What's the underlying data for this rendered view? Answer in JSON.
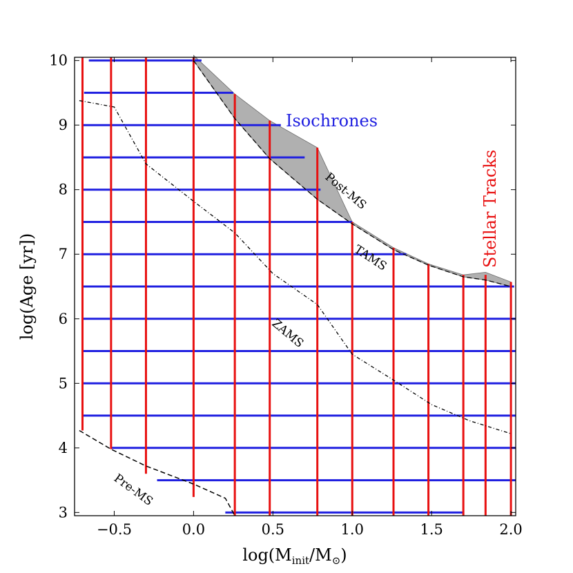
{
  "chart_data": {
    "type": "line",
    "xlabel": "log(M",
    "xlabel_sub": "init",
    "xlabel_mid": "/M",
    "xlabel_sub2": "⊙",
    "xlabel_end": ")",
    "ylabel": "log(Age [yr])",
    "xlim": [
      -0.75,
      2.03
    ],
    "ylim": [
      2.95,
      10.05
    ],
    "x_ticks": [
      -0.5,
      0.0,
      0.5,
      1.0,
      1.5,
      2.0
    ],
    "x_tick_labels": [
      "−0.5",
      "0.0",
      "0.5",
      "1.0",
      "1.5",
      "2.0"
    ],
    "y_ticks": [
      3,
      4,
      5,
      6,
      7,
      8,
      9,
      10
    ],
    "y_tick_labels": [
      "3",
      "4",
      "5",
      "6",
      "7",
      "8",
      "9",
      "10"
    ],
    "isochrones": {
      "label": "Isochrones",
      "color": "#1f1fe0",
      "lines": [
        {
          "log_age": 10.0,
          "x": [
            -0.66,
            0.05
          ]
        },
        {
          "log_age": 9.5,
          "x": [
            -0.69,
            0.25
          ]
        },
        {
          "log_age": 9.0,
          "x": [
            -0.7,
            0.55
          ]
        },
        {
          "log_age": 8.5,
          "x": [
            -0.7,
            0.7
          ]
        },
        {
          "log_age": 8.0,
          "x": [
            -0.7,
            0.8
          ]
        },
        {
          "log_age": 7.5,
          "x": [
            -0.7,
            1.0
          ]
        },
        {
          "log_age": 7.0,
          "x": [
            -0.7,
            1.34
          ]
        },
        {
          "log_age": 6.5,
          "x": [
            -0.7,
            2.02
          ]
        },
        {
          "log_age": 6.0,
          "x": [
            -0.7,
            2.03
          ]
        },
        {
          "log_age": 5.5,
          "x": [
            -0.7,
            2.03
          ]
        },
        {
          "log_age": 5.0,
          "x": [
            -0.7,
            2.03
          ]
        },
        {
          "log_age": 4.5,
          "x": [
            -0.7,
            2.03
          ]
        },
        {
          "log_age": 4.0,
          "x": [
            -0.52,
            2.03
          ]
        },
        {
          "log_age": 3.5,
          "x": [
            -0.23,
            2.03
          ]
        },
        {
          "log_age": 3.0,
          "x": [
            0.2,
            1.7
          ]
        }
      ]
    },
    "stellar_tracks": {
      "label": "Stellar Tracks",
      "color": "#e81010",
      "lines": [
        {
          "log_mass": -0.7,
          "y": [
            4.27,
            10.05
          ]
        },
        {
          "log_mass": -0.52,
          "y": [
            3.98,
            10.05
          ]
        },
        {
          "log_mass": -0.3,
          "y": [
            3.6,
            10.05
          ]
        },
        {
          "log_mass": 0.0,
          "y": [
            3.24,
            10.05
          ]
        },
        {
          "log_mass": 0.26,
          "y": [
            2.95,
            9.48
          ]
        },
        {
          "log_mass": 0.48,
          "y": [
            2.95,
            9.07
          ]
        },
        {
          "log_mass": 0.78,
          "y": [
            2.95,
            8.65
          ]
        },
        {
          "log_mass": 1.0,
          "y": [
            2.95,
            7.5
          ]
        },
        {
          "log_mass": 1.26,
          "y": [
            2.95,
            7.1
          ]
        },
        {
          "log_mass": 1.48,
          "y": [
            2.95,
            6.85
          ]
        },
        {
          "log_mass": 1.7,
          "y": [
            2.95,
            6.68
          ]
        },
        {
          "log_mass": 1.84,
          "y": [
            2.95,
            6.68
          ]
        },
        {
          "log_mass": 2.0,
          "y": [
            2.95,
            6.57
          ]
        }
      ]
    },
    "zams": {
      "label": "ZAMS",
      "points": [
        [
          -0.72,
          9.38
        ],
        [
          -0.5,
          9.28
        ],
        [
          -0.3,
          8.4
        ],
        [
          0.0,
          7.82
        ],
        [
          0.26,
          7.33
        ],
        [
          0.5,
          6.7
        ],
        [
          0.78,
          6.22
        ],
        [
          1.0,
          5.45
        ],
        [
          1.26,
          5.05
        ],
        [
          1.5,
          4.67
        ],
        [
          1.74,
          4.42
        ],
        [
          2.0,
          4.22
        ]
      ]
    },
    "pre_ms": {
      "label": "Pre-MS",
      "points": [
        [
          -0.72,
          4.27
        ],
        [
          -0.52,
          3.98
        ],
        [
          -0.3,
          3.72
        ],
        [
          0.0,
          3.44
        ],
        [
          0.2,
          3.22
        ],
        [
          0.26,
          2.95
        ]
      ]
    },
    "post_ms": {
      "label": "Post-MS",
      "upper": [
        [
          0.0,
          10.08
        ],
        [
          0.26,
          9.48
        ],
        [
          0.48,
          9.07
        ],
        [
          0.78,
          8.65
        ],
        [
          1.0,
          7.5
        ],
        [
          1.26,
          7.1
        ],
        [
          1.48,
          6.85
        ],
        [
          1.7,
          6.68
        ],
        [
          1.84,
          6.72
        ],
        [
          2.0,
          6.57
        ]
      ],
      "lower": [
        [
          2.0,
          6.5
        ],
        [
          1.84,
          6.6
        ],
        [
          1.7,
          6.65
        ],
        [
          1.48,
          6.83
        ],
        [
          1.26,
          7.07
        ],
        [
          1.0,
          7.47
        ],
        [
          0.78,
          7.85
        ],
        [
          0.48,
          8.48
        ],
        [
          0.26,
          9.1
        ],
        [
          0.0,
          10.0
        ]
      ],
      "fill_color": "#b0b0b0"
    },
    "tams": {
      "label": "TAMS"
    }
  }
}
